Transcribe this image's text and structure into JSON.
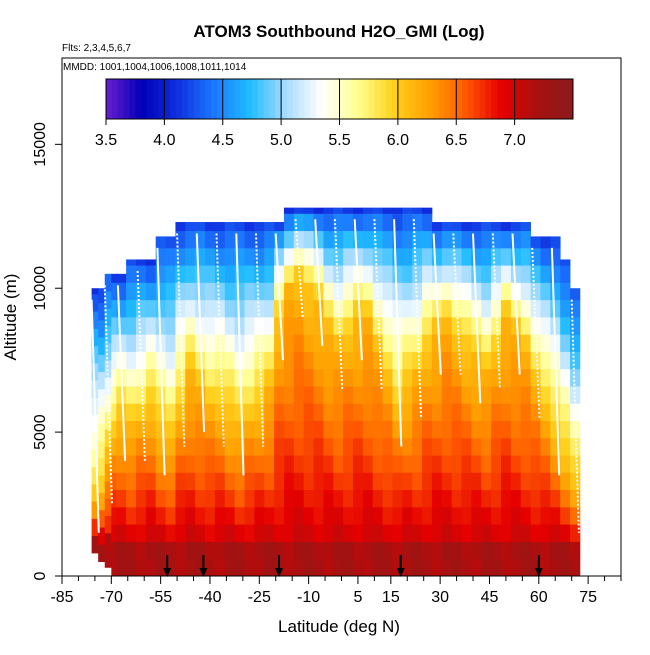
{
  "chart_data": {
    "type": "heatmap",
    "title": "ATOM3 Southbound H2O_GMI (Log)",
    "subtitle_flights": "Flts: 2,3,4,5,6,7",
    "subtitle_dates": "MMDD: 1001,1004,1006,1008,1011,1014",
    "xlabel": "Latitude (deg N)",
    "ylabel": "Altitude (m)",
    "xlim": [
      -85,
      85
    ],
    "ylim": [
      0,
      18000
    ],
    "x_ticks": [
      -85,
      -70,
      -55,
      -40,
      -25,
      -10,
      5,
      15,
      30,
      45,
      60,
      75
    ],
    "x_tick_labels": [
      "-85",
      "-70",
      "-55",
      "-40",
      "-25",
      "-10",
      "5",
      "15",
      "30",
      "45",
      "60",
      "75"
    ],
    "x_minor_ticks": [
      -80,
      -75,
      -65,
      -60,
      -50,
      -45,
      -35,
      -30,
      -20,
      -15,
      -5,
      0,
      10,
      20,
      25,
      35,
      40,
      50,
      55,
      65,
      70,
      80,
      85
    ],
    "y_ticks": [
      0,
      5000,
      10000,
      15000
    ],
    "y_tick_labels": [
      "0",
      "5000",
      "10000",
      "15000"
    ],
    "colorbar": {
      "range": [
        3.5,
        7.5
      ],
      "tick_values": [
        3.5,
        4.0,
        4.5,
        5.0,
        5.5,
        6.0,
        6.5,
        7.0
      ],
      "tick_labels": [
        "3.5",
        "4.0",
        "4.5",
        "5.0",
        "5.5",
        "6.0",
        "6.5",
        "7.0"
      ],
      "colors": [
        "#6a1fd0",
        "#0000b8",
        "#1030e0",
        "#1c78ff",
        "#1ebcff",
        "#a8dcff",
        "#ffffff",
        "#ffff90",
        "#ffd21e",
        "#ffa000",
        "#ff5a00",
        "#e60000",
        "#a81010",
        "#8a1c1c"
      ]
    },
    "profile_latitudes": [
      -75,
      -73,
      -71,
      -69,
      -67,
      -64,
      -61,
      -58,
      -55,
      -52,
      -49,
      -46,
      -43,
      -40,
      -37,
      -34,
      -31,
      -28,
      -25,
      -22,
      -19,
      -16,
      -13,
      -10,
      -7,
      -4,
      -1,
      2,
      5,
      8,
      11,
      14,
      17,
      20,
      23,
      26,
      29,
      32,
      35,
      38,
      41,
      44,
      47,
      50,
      53,
      56,
      59,
      62,
      65,
      68,
      71
    ],
    "profile_tops_m": [
      10000,
      10000,
      10500,
      10500,
      10500,
      11000,
      11000,
      11000,
      11800,
      11800,
      12300,
      12300,
      12300,
      12300,
      12300,
      12300,
      12300,
      12300,
      12300,
      12300,
      12300,
      12800,
      12800,
      12800,
      12800,
      12800,
      12800,
      12800,
      12800,
      12800,
      12800,
      12800,
      12800,
      12800,
      12800,
      12800,
      12300,
      12300,
      12300,
      12300,
      12300,
      12300,
      12300,
      12300,
      12300,
      12300,
      11800,
      11800,
      11800,
      11000,
      10000
    ],
    "profile_bottoms_m": [
      800,
      500,
      300,
      0,
      0,
      0,
      0,
      0,
      0,
      0,
      0,
      0,
      0,
      0,
      0,
      0,
      0,
      0,
      0,
      0,
      0,
      0,
      0,
      0,
      0,
      0,
      0,
      0,
      0,
      0,
      0,
      0,
      0,
      0,
      0,
      0,
      0,
      0,
      0,
      0,
      0,
      0,
      0,
      0,
      0,
      0,
      0,
      0,
      0,
      0,
      0
    ],
    "boundary_layer_log_h2o": 7.2,
    "moist_core_top_m": [
      2500,
      3000,
      4000,
      5000,
      5500,
      5000,
      5500,
      6000,
      5000,
      4500,
      6000,
      7000,
      6500,
      6000,
      6000,
      5500,
      5000,
      5500,
      6000,
      6500,
      9000,
      10000,
      10500,
      10000,
      9500,
      8500,
      8000,
      8500,
      9000,
      9000,
      8000,
      7000,
      6000,
      6500,
      7000,
      8000,
      8500,
      9000,
      8500,
      8000,
      7500,
      7000,
      8000,
      9000,
      8500,
      8000,
      7000,
      6000,
      5000,
      4000,
      3000
    ],
    "arrow_latitudes": [
      -53,
      -42,
      -19,
      18,
      60
    ],
    "flight_track_note": "white sawtooth profile lines"
  }
}
